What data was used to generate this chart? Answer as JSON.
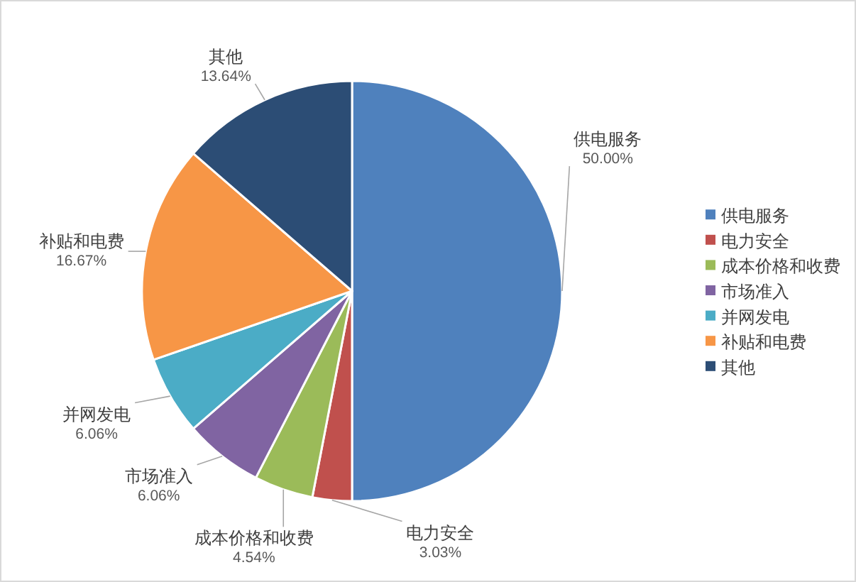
{
  "chart_data": {
    "type": "pie",
    "categories": [
      "供电服务",
      "电力安全",
      "成本价格和收费",
      "市场准入",
      "并网发电",
      "补贴和电费",
      "其他"
    ],
    "values": [
      50.0,
      3.03,
      4.54,
      6.06,
      6.06,
      16.67,
      13.64
    ],
    "value_labels": [
      "50.00%",
      "3.03%",
      "4.54%",
      "6.06%",
      "6.06%",
      "16.67%",
      "13.64%"
    ],
    "colors": [
      "#4f81bd",
      "#c0504d",
      "#9bbb59",
      "#8064a2",
      "#4bacc6",
      "#f79646",
      "#2c4d75"
    ],
    "legend": "right"
  }
}
